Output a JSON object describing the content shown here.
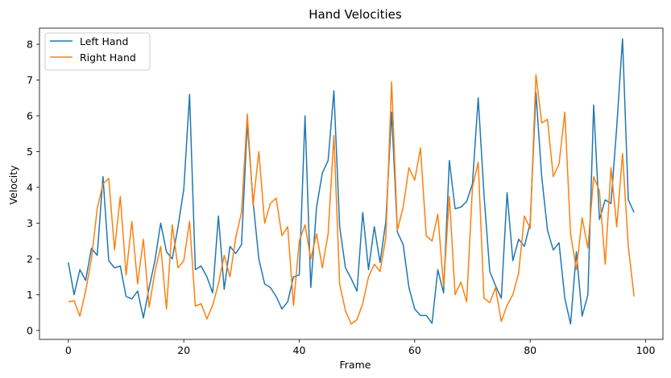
{
  "chart_data": {
    "type": "line",
    "title": "Hand Velocities",
    "xlabel": "Frame",
    "ylabel": "Velocity",
    "xlim": [
      -5,
      103
    ],
    "ylim": [
      -0.25,
      8.45
    ],
    "xticks": [
      0,
      20,
      40,
      60,
      80,
      100
    ],
    "yticks": [
      0,
      1,
      2,
      3,
      4,
      5,
      6,
      7,
      8
    ],
    "grid": false,
    "legend": "top-left",
    "x": [
      0,
      1,
      2,
      3,
      4,
      5,
      6,
      7,
      8,
      9,
      10,
      11,
      12,
      13,
      14,
      15,
      16,
      17,
      18,
      19,
      20,
      21,
      22,
      23,
      24,
      25,
      26,
      27,
      28,
      29,
      30,
      31,
      32,
      33,
      34,
      35,
      36,
      37,
      38,
      39,
      40,
      41,
      42,
      43,
      44,
      45,
      46,
      47,
      48,
      49,
      50,
      51,
      52,
      53,
      54,
      55,
      56,
      57,
      58,
      59,
      60,
      61,
      62,
      63,
      64,
      65,
      66,
      67,
      68,
      69,
      70,
      71,
      72,
      73,
      74,
      75,
      76,
      77,
      78,
      79,
      80,
      81,
      82,
      83,
      84,
      85,
      86,
      87,
      88,
      89,
      90,
      91,
      92,
      93,
      94,
      95,
      96,
      97,
      98
    ],
    "series": [
      {
        "name": "Left Hand",
        "color": "#1f77b4",
        "values": [
          1.9,
          1.0,
          1.7,
          1.4,
          2.3,
          2.1,
          4.3,
          1.95,
          1.75,
          1.8,
          0.95,
          0.88,
          1.1,
          0.35,
          1.2,
          1.95,
          3.0,
          2.2,
          2.0,
          2.9,
          3.95,
          6.6,
          1.7,
          1.8,
          1.5,
          1.05,
          3.2,
          1.15,
          2.35,
          2.15,
          2.4,
          5.8,
          3.6,
          2.0,
          1.3,
          1.2,
          0.95,
          0.6,
          0.8,
          1.5,
          1.55,
          6.0,
          1.2,
          3.45,
          4.4,
          4.75,
          6.7,
          2.9,
          1.75,
          1.45,
          1.1,
          3.3,
          1.7,
          2.9,
          1.9,
          3.05,
          6.1,
          2.75,
          2.4,
          1.2,
          0.6,
          0.42,
          0.42,
          0.2,
          1.7,
          1.05,
          4.75,
          3.4,
          3.45,
          3.6,
          4.1,
          6.5,
          3.8,
          1.65,
          1.25,
          0.9,
          3.85,
          1.95,
          2.55,
          2.35,
          3.0,
          6.65,
          4.3,
          2.8,
          2.25,
          2.45,
          0.9,
          0.18,
          2.2,
          0.4,
          1.0,
          6.3,
          3.1,
          3.65,
          3.55,
          5.7,
          8.15,
          3.65,
          3.3
        ]
      },
      {
        "name": "Right Hand",
        "color": "#ff7f0e",
        "values": [
          0.8,
          0.83,
          0.4,
          1.1,
          2.0,
          3.4,
          4.1,
          4.25,
          2.25,
          3.75,
          1.55,
          3.05,
          1.3,
          2.55,
          0.65,
          1.65,
          2.35,
          0.6,
          2.95,
          1.75,
          1.95,
          3.05,
          0.68,
          0.75,
          0.32,
          0.7,
          1.3,
          2.1,
          1.5,
          2.6,
          3.3,
          6.05,
          3.5,
          5.0,
          3.0,
          3.55,
          3.7,
          2.65,
          2.9,
          0.7,
          2.5,
          2.95,
          2.0,
          2.7,
          1.75,
          2.7,
          5.45,
          1.3,
          0.55,
          0.18,
          0.3,
          0.75,
          1.5,
          1.85,
          1.65,
          2.6,
          6.95,
          2.8,
          3.45,
          4.55,
          4.2,
          5.1,
          2.65,
          2.5,
          3.25,
          1.25,
          3.75,
          1.0,
          1.35,
          0.8,
          4.0,
          4.7,
          0.9,
          0.78,
          1.2,
          0.25,
          0.7,
          1.0,
          1.6,
          3.2,
          2.85,
          7.15,
          5.8,
          5.9,
          4.3,
          4.65,
          6.1,
          2.7,
          1.7,
          3.15,
          2.3,
          4.3,
          3.9,
          1.85,
          4.55,
          2.9,
          4.95,
          2.35,
          0.95
        ]
      }
    ]
  }
}
